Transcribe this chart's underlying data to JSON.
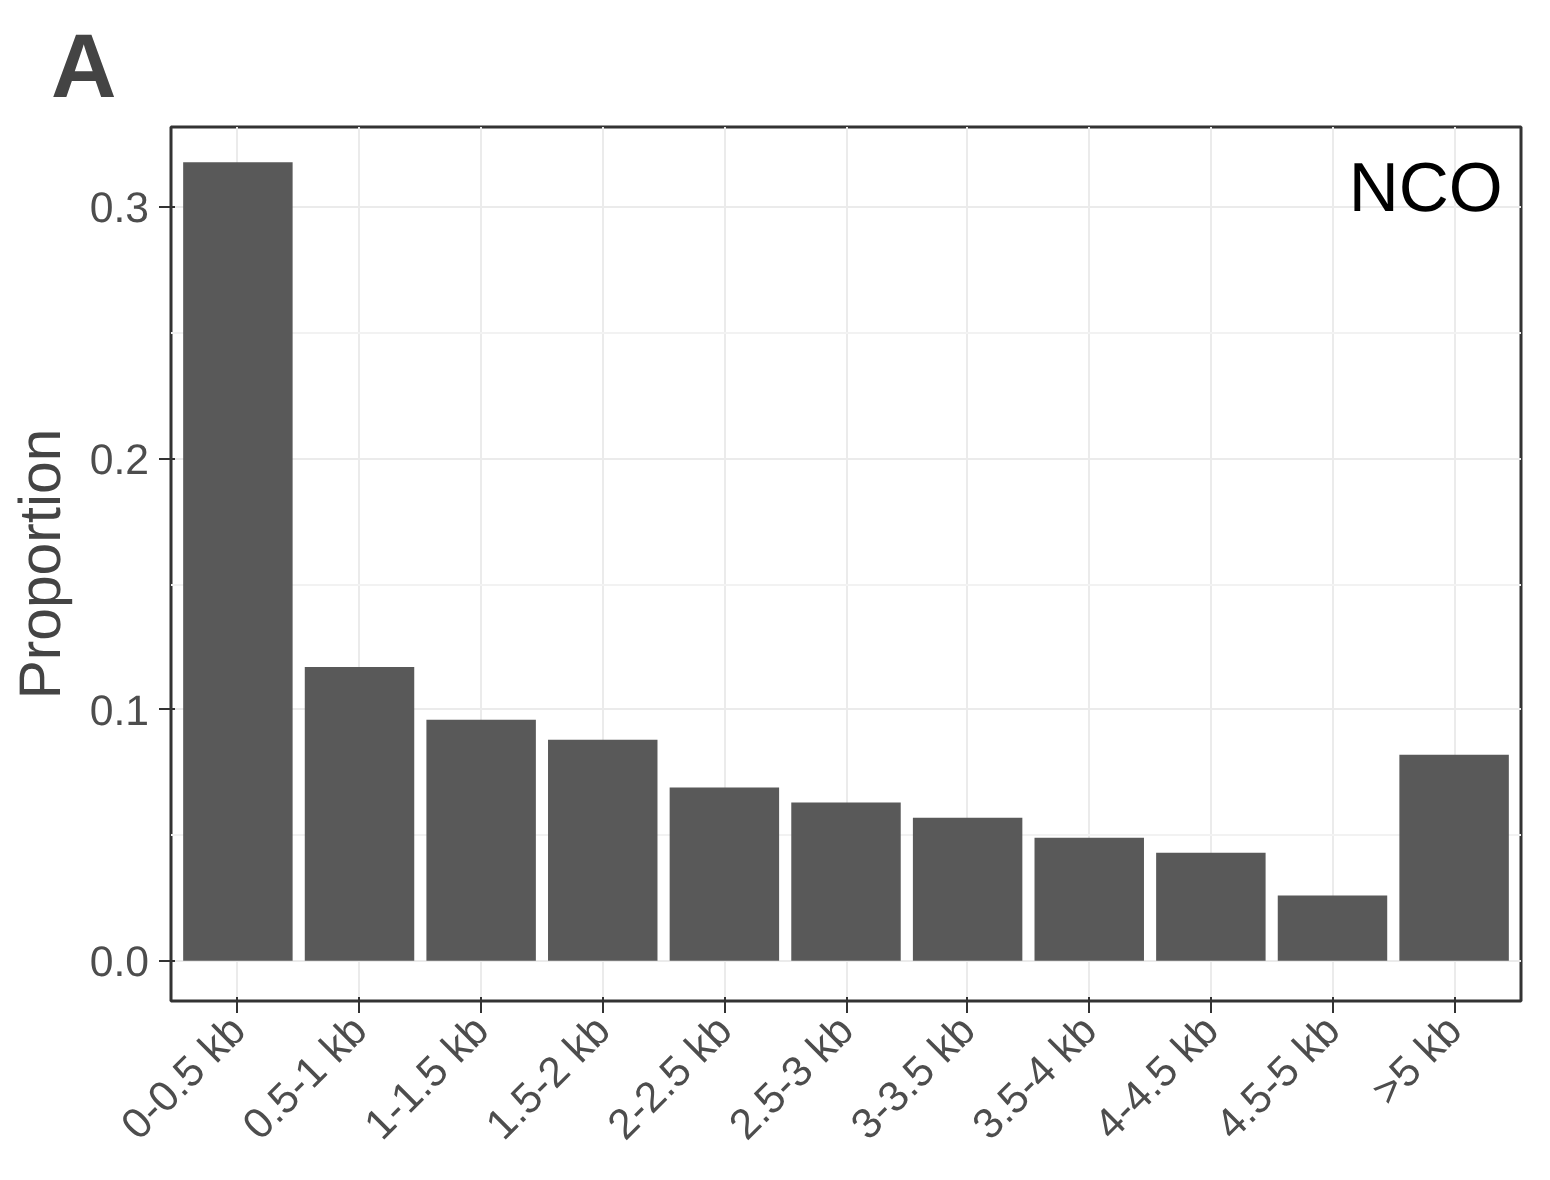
{
  "chart_data": {
    "type": "bar",
    "title": "A",
    "ylabel": "Proportion",
    "categories": [
      "0-0.5 kb",
      "0.5-1 kb",
      "1-1.5 kb",
      "1.5-2 kb",
      "2-2.5 kb",
      "2.5-3 kb",
      "3-3.5 kb",
      "3.5-4 kb",
      "4-4.5 kb",
      "4.5-5 kb",
      ">5 kb"
    ],
    "values": [
      0.318,
      0.117,
      0.096,
      0.088,
      0.069,
      0.063,
      0.057,
      0.049,
      0.043,
      0.026,
      0.082
    ],
    "color": "#595959",
    "ylim": [
      -0.016,
      0.332
    ],
    "yticks": [
      {
        "value": 0,
        "label": "0.0"
      },
      0.1,
      0.2,
      0.3
    ],
    "grid": true,
    "annotations": [
      "NCO"
    ]
  }
}
